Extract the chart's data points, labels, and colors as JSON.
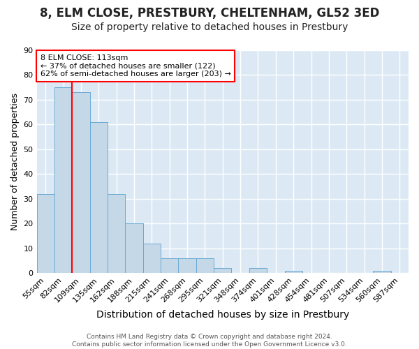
{
  "title": "8, ELM CLOSE, PRESTBURY, CHELTENHAM, GL52 3ED",
  "subtitle": "Size of property relative to detached houses in Prestbury",
  "xlabel": "Distribution of detached houses by size in Prestbury",
  "ylabel": "Number of detached properties",
  "categories": [
    "55sqm",
    "82sqm",
    "109sqm",
    "135sqm",
    "162sqm",
    "188sqm",
    "215sqm",
    "241sqm",
    "268sqm",
    "295sqm",
    "321sqm",
    "348sqm",
    "374sqm",
    "401sqm",
    "428sqm",
    "454sqm",
    "481sqm",
    "507sqm",
    "534sqm",
    "560sqm",
    "587sqm"
  ],
  "values": [
    32,
    75,
    73,
    61,
    32,
    20,
    12,
    6,
    6,
    6,
    2,
    0,
    2,
    0,
    1,
    0,
    0,
    0,
    0,
    1,
    0
  ],
  "bar_color": "#c5d8e8",
  "bar_edge_color": "#6aaad4",
  "vline_x_index": 2,
  "vline_color": "red",
  "annotation_text": "8 ELM CLOSE: 113sqm\n← 37% of detached houses are smaller (122)\n62% of semi-detached houses are larger (203) →",
  "annotation_box_facecolor": "white",
  "annotation_box_edgecolor": "red",
  "ylim": [
    0,
    90
  ],
  "yticks": [
    0,
    10,
    20,
    30,
    40,
    50,
    60,
    70,
    80,
    90
  ],
  "plot_bg_color": "#dce9f5",
  "fig_bg_color": "#ffffff",
  "grid_color": "#ffffff",
  "title_fontsize": 12,
  "subtitle_fontsize": 10,
  "xlabel_fontsize": 10,
  "ylabel_fontsize": 9,
  "tick_fontsize": 8,
  "annot_fontsize": 8,
  "footer_text": "Contains HM Land Registry data © Crown copyright and database right 2024.\nContains public sector information licensed under the Open Government Licence v3.0."
}
